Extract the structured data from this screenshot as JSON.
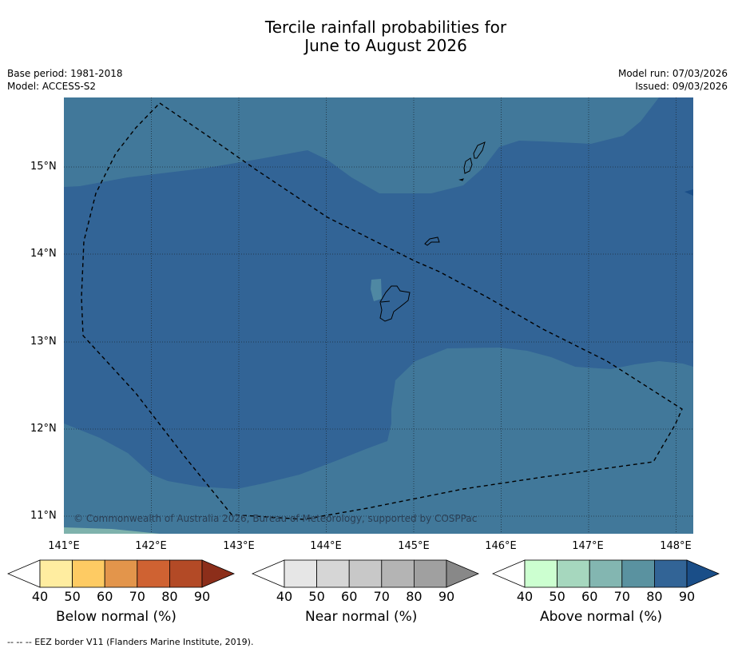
{
  "title_line1": "Tercile rainfall probabilities for",
  "title_line2": "June to August 2026",
  "base_period": "Base period: 1981-2018",
  "model": "Model: ACCESS-S2",
  "model_run": "Model run: 07/03/2026",
  "issued": "Issued: 09/03/2026",
  "copyright": "© Commonwealth of Australia 2026, Bureau of Meteorology, supported by COSPPac",
  "lat_labels": [
    "15°N",
    "14°N",
    "13°N",
    "12°N",
    "11°N"
  ],
  "lon_labels": [
    "141°E",
    "142°E",
    "143°E",
    "144°E",
    "145°E",
    "146°E",
    "147°E",
    "148°E"
  ],
  "colorbars": [
    {
      "label": "Below normal (%)",
      "ticks": [
        "40",
        "50",
        "60",
        "70",
        "80",
        "90"
      ],
      "colors": [
        "#ffffff",
        "#ffeda0",
        "#fecb63",
        "#e3954b",
        "#cf6232",
        "#b34a26",
        "#8c2e1a"
      ]
    },
    {
      "label": "Near normal (%)",
      "ticks": [
        "40",
        "50",
        "60",
        "70",
        "80",
        "90"
      ],
      "colors": [
        "#ffffff",
        "#e6e6e6",
        "#d6d6d6",
        "#c8c8c8",
        "#b4b4b4",
        "#a0a0a0",
        "#888888"
      ]
    },
    {
      "label": "Above normal (%)",
      "ticks": [
        "40",
        "50",
        "60",
        "70",
        "80",
        "90"
      ],
      "colors": [
        "#ffffff",
        "#ccffd0",
        "#a6d7be",
        "#83b6b1",
        "#5a92a0",
        "#326496",
        "#1a4e88"
      ]
    }
  ],
  "map_colors": {
    "above_70_80": "#41789a",
    "above_80_90": "#326496",
    "above_90": "#1a4e88",
    "above_60_70": "#7eb2ac"
  },
  "footer": "--  --  -- EEZ border V11 (Flanders Marine Institute, 2019)."
}
